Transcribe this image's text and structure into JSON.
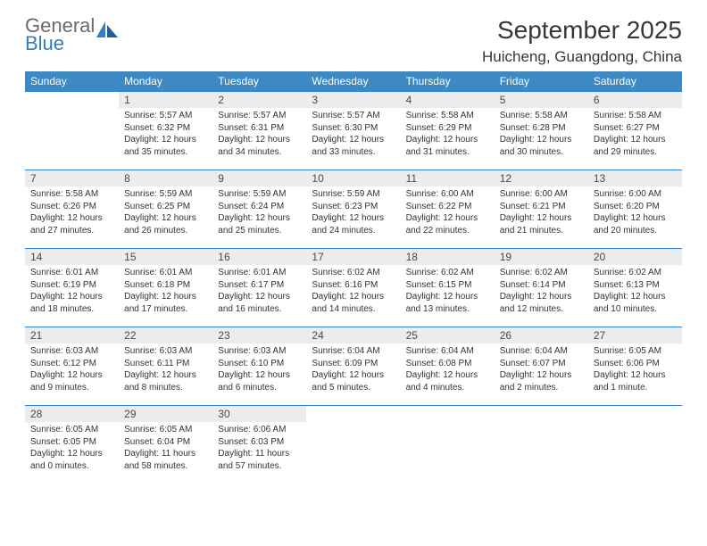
{
  "logo": {
    "word1": "General",
    "word2": "Blue"
  },
  "title": "September 2025",
  "location": "Huicheng, Guangdong, China",
  "colors": {
    "header_bg": "#3d89c3",
    "rule": "#2f7fc2",
    "daynum_bg": "#ececec",
    "text": "#333333",
    "logo_gray": "#6a6a6a",
    "logo_blue": "#2f7fc2"
  },
  "columns": [
    "Sunday",
    "Monday",
    "Tuesday",
    "Wednesday",
    "Thursday",
    "Friday",
    "Saturday"
  ],
  "weeks": [
    [
      {
        "n": "",
        "lines": []
      },
      {
        "n": "1",
        "lines": [
          "Sunrise: 5:57 AM",
          "Sunset: 6:32 PM",
          "Daylight: 12 hours",
          "and 35 minutes."
        ]
      },
      {
        "n": "2",
        "lines": [
          "Sunrise: 5:57 AM",
          "Sunset: 6:31 PM",
          "Daylight: 12 hours",
          "and 34 minutes."
        ]
      },
      {
        "n": "3",
        "lines": [
          "Sunrise: 5:57 AM",
          "Sunset: 6:30 PM",
          "Daylight: 12 hours",
          "and 33 minutes."
        ]
      },
      {
        "n": "4",
        "lines": [
          "Sunrise: 5:58 AM",
          "Sunset: 6:29 PM",
          "Daylight: 12 hours",
          "and 31 minutes."
        ]
      },
      {
        "n": "5",
        "lines": [
          "Sunrise: 5:58 AM",
          "Sunset: 6:28 PM",
          "Daylight: 12 hours",
          "and 30 minutes."
        ]
      },
      {
        "n": "6",
        "lines": [
          "Sunrise: 5:58 AM",
          "Sunset: 6:27 PM",
          "Daylight: 12 hours",
          "and 29 minutes."
        ]
      }
    ],
    [
      {
        "n": "7",
        "lines": [
          "Sunrise: 5:58 AM",
          "Sunset: 6:26 PM",
          "Daylight: 12 hours",
          "and 27 minutes."
        ]
      },
      {
        "n": "8",
        "lines": [
          "Sunrise: 5:59 AM",
          "Sunset: 6:25 PM",
          "Daylight: 12 hours",
          "and 26 minutes."
        ]
      },
      {
        "n": "9",
        "lines": [
          "Sunrise: 5:59 AM",
          "Sunset: 6:24 PM",
          "Daylight: 12 hours",
          "and 25 minutes."
        ]
      },
      {
        "n": "10",
        "lines": [
          "Sunrise: 5:59 AM",
          "Sunset: 6:23 PM",
          "Daylight: 12 hours",
          "and 24 minutes."
        ]
      },
      {
        "n": "11",
        "lines": [
          "Sunrise: 6:00 AM",
          "Sunset: 6:22 PM",
          "Daylight: 12 hours",
          "and 22 minutes."
        ]
      },
      {
        "n": "12",
        "lines": [
          "Sunrise: 6:00 AM",
          "Sunset: 6:21 PM",
          "Daylight: 12 hours",
          "and 21 minutes."
        ]
      },
      {
        "n": "13",
        "lines": [
          "Sunrise: 6:00 AM",
          "Sunset: 6:20 PM",
          "Daylight: 12 hours",
          "and 20 minutes."
        ]
      }
    ],
    [
      {
        "n": "14",
        "lines": [
          "Sunrise: 6:01 AM",
          "Sunset: 6:19 PM",
          "Daylight: 12 hours",
          "and 18 minutes."
        ]
      },
      {
        "n": "15",
        "lines": [
          "Sunrise: 6:01 AM",
          "Sunset: 6:18 PM",
          "Daylight: 12 hours",
          "and 17 minutes."
        ]
      },
      {
        "n": "16",
        "lines": [
          "Sunrise: 6:01 AM",
          "Sunset: 6:17 PM",
          "Daylight: 12 hours",
          "and 16 minutes."
        ]
      },
      {
        "n": "17",
        "lines": [
          "Sunrise: 6:02 AM",
          "Sunset: 6:16 PM",
          "Daylight: 12 hours",
          "and 14 minutes."
        ]
      },
      {
        "n": "18",
        "lines": [
          "Sunrise: 6:02 AM",
          "Sunset: 6:15 PM",
          "Daylight: 12 hours",
          "and 13 minutes."
        ]
      },
      {
        "n": "19",
        "lines": [
          "Sunrise: 6:02 AM",
          "Sunset: 6:14 PM",
          "Daylight: 12 hours",
          "and 12 minutes."
        ]
      },
      {
        "n": "20",
        "lines": [
          "Sunrise: 6:02 AM",
          "Sunset: 6:13 PM",
          "Daylight: 12 hours",
          "and 10 minutes."
        ]
      }
    ],
    [
      {
        "n": "21",
        "lines": [
          "Sunrise: 6:03 AM",
          "Sunset: 6:12 PM",
          "Daylight: 12 hours",
          "and 9 minutes."
        ]
      },
      {
        "n": "22",
        "lines": [
          "Sunrise: 6:03 AM",
          "Sunset: 6:11 PM",
          "Daylight: 12 hours",
          "and 8 minutes."
        ]
      },
      {
        "n": "23",
        "lines": [
          "Sunrise: 6:03 AM",
          "Sunset: 6:10 PM",
          "Daylight: 12 hours",
          "and 6 minutes."
        ]
      },
      {
        "n": "24",
        "lines": [
          "Sunrise: 6:04 AM",
          "Sunset: 6:09 PM",
          "Daylight: 12 hours",
          "and 5 minutes."
        ]
      },
      {
        "n": "25",
        "lines": [
          "Sunrise: 6:04 AM",
          "Sunset: 6:08 PM",
          "Daylight: 12 hours",
          "and 4 minutes."
        ]
      },
      {
        "n": "26",
        "lines": [
          "Sunrise: 6:04 AM",
          "Sunset: 6:07 PM",
          "Daylight: 12 hours",
          "and 2 minutes."
        ]
      },
      {
        "n": "27",
        "lines": [
          "Sunrise: 6:05 AM",
          "Sunset: 6:06 PM",
          "Daylight: 12 hours",
          "and 1 minute."
        ]
      }
    ],
    [
      {
        "n": "28",
        "lines": [
          "Sunrise: 6:05 AM",
          "Sunset: 6:05 PM",
          "Daylight: 12 hours",
          "and 0 minutes."
        ]
      },
      {
        "n": "29",
        "lines": [
          "Sunrise: 6:05 AM",
          "Sunset: 6:04 PM",
          "Daylight: 11 hours",
          "and 58 minutes."
        ]
      },
      {
        "n": "30",
        "lines": [
          "Sunrise: 6:06 AM",
          "Sunset: 6:03 PM",
          "Daylight: 11 hours",
          "and 57 minutes."
        ]
      },
      {
        "n": "",
        "lines": []
      },
      {
        "n": "",
        "lines": []
      },
      {
        "n": "",
        "lines": []
      },
      {
        "n": "",
        "lines": []
      }
    ]
  ]
}
